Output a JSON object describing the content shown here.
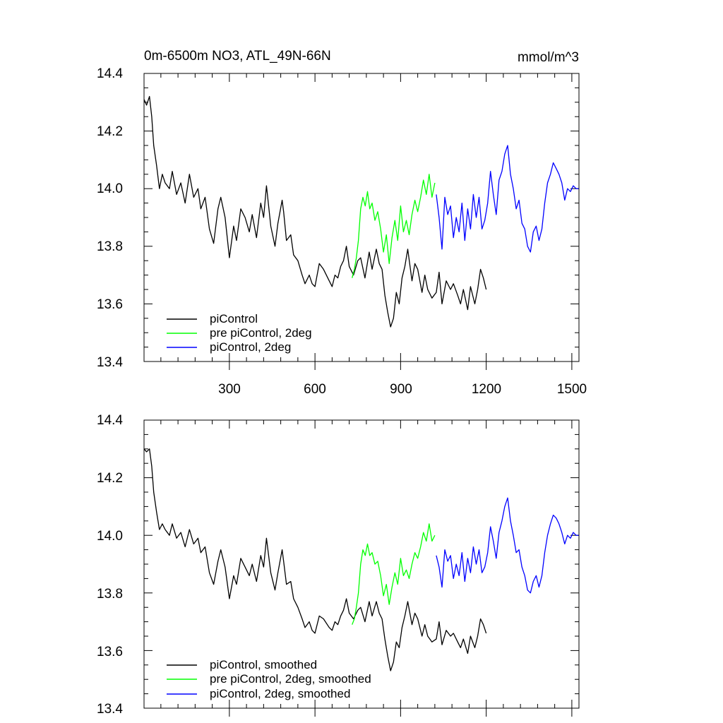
{
  "chart_data": [
    {
      "type": "line",
      "title": "0m-6500m NO3, ATL_49N-66N",
      "units": "mmol/m^3",
      "xlabel": "",
      "ylabel": "",
      "xlim": [
        1,
        1525
      ],
      "ylim": [
        13.4,
        14.4
      ],
      "xticks": [
        "300",
        "600",
        "900",
        "1200",
        "1500"
      ],
      "yticks": [
        "13.4",
        "13.6",
        "13.8",
        "14.0",
        "14.2",
        "14.4"
      ],
      "grid": false,
      "legend_position": "bottom-left",
      "series": [
        {
          "name": "piControl",
          "color": "#000000",
          "x": [
            1,
            10,
            20,
            28,
            35,
            45,
            55,
            65,
            75,
            90,
            100,
            115,
            130,
            145,
            160,
            175,
            190,
            200,
            215,
            230,
            245,
            260,
            270,
            285,
            300,
            315,
            325,
            340,
            355,
            370,
            380,
            395,
            410,
            420,
            430,
            445,
            460,
            470,
            485,
            490,
            500,
            515,
            525,
            540,
            555,
            565,
            580,
            590,
            600,
            615,
            630,
            650,
            660,
            670,
            680,
            690,
            700,
            710,
            720,
            735,
            750,
            760,
            775,
            790,
            800,
            815,
            825,
            835,
            845,
            855,
            865,
            875,
            885,
            895,
            905,
            915,
            925,
            940,
            950,
            960,
            975,
            985,
            995,
            1010,
            1025,
            1035,
            1045,
            1060,
            1075,
            1085,
            1100,
            1110,
            1120,
            1135,
            1145,
            1160,
            1170,
            1180,
            1190,
            1200
          ],
          "y": [
            14.31,
            14.29,
            14.32,
            14.25,
            14.15,
            14.08,
            14.0,
            14.05,
            14.02,
            14.0,
            14.06,
            13.98,
            14.02,
            13.95,
            14.05,
            13.97,
            14.0,
            13.93,
            13.97,
            13.86,
            13.81,
            13.93,
            13.97,
            13.9,
            13.76,
            13.87,
            13.82,
            13.93,
            13.9,
            13.85,
            13.91,
            13.83,
            13.95,
            13.9,
            14.01,
            13.87,
            13.8,
            13.88,
            13.96,
            13.92,
            13.82,
            13.84,
            13.77,
            13.75,
            13.7,
            13.67,
            13.7,
            13.67,
            13.66,
            13.74,
            13.72,
            13.68,
            13.66,
            13.7,
            13.69,
            13.73,
            13.75,
            13.8,
            13.73,
            13.7,
            13.75,
            13.76,
            13.69,
            13.78,
            13.72,
            13.79,
            13.74,
            13.72,
            13.63,
            13.57,
            13.52,
            13.55,
            13.64,
            13.6,
            13.69,
            13.73,
            13.79,
            13.68,
            13.74,
            13.72,
            13.64,
            13.7,
            13.65,
            13.62,
            13.64,
            13.71,
            13.6,
            13.68,
            13.65,
            13.67,
            13.63,
            13.6,
            13.65,
            13.58,
            13.66,
            13.6,
            13.65,
            13.72,
            13.69,
            13.65
          ]
        },
        {
          "name": "pre piControl, 2deg",
          "color": "#00ff00",
          "x": [
            730,
            738,
            745,
            752,
            760,
            768,
            776,
            784,
            792,
            800,
            810,
            820,
            830,
            840,
            850,
            860,
            870,
            880,
            890,
            900,
            910,
            920,
            930,
            940,
            950,
            960,
            970,
            980,
            990,
            1000,
            1010,
            1020
          ],
          "y": [
            13.69,
            13.72,
            13.76,
            13.82,
            13.93,
            13.97,
            13.94,
            13.99,
            13.93,
            13.95,
            13.89,
            13.92,
            13.86,
            13.78,
            13.84,
            13.74,
            13.83,
            13.89,
            13.82,
            13.94,
            13.85,
            13.89,
            13.84,
            13.91,
            13.96,
            13.92,
            13.97,
            14.03,
            13.98,
            14.05,
            13.97,
            14.02
          ]
        },
        {
          "name": "piControl, 2deg",
          "color": "#0000ff",
          "x": [
            1025,
            1035,
            1045,
            1055,
            1065,
            1075,
            1085,
            1095,
            1105,
            1115,
            1125,
            1135,
            1145,
            1155,
            1165,
            1175,
            1185,
            1195,
            1205,
            1215,
            1225,
            1235,
            1245,
            1255,
            1265,
            1275,
            1285,
            1295,
            1305,
            1315,
            1325,
            1335,
            1345,
            1355,
            1365,
            1375,
            1385,
            1395,
            1405,
            1415,
            1425,
            1435,
            1445,
            1455,
            1465,
            1475,
            1485,
            1495,
            1505,
            1515,
            1525
          ],
          "y": [
            13.98,
            13.9,
            13.79,
            13.97,
            13.91,
            13.94,
            13.83,
            13.9,
            13.85,
            13.95,
            13.82,
            13.93,
            13.86,
            13.98,
            13.9,
            13.97,
            13.86,
            13.89,
            13.95,
            14.06,
            13.98,
            13.91,
            14.03,
            14.06,
            14.12,
            14.15,
            14.05,
            14.0,
            13.93,
            13.96,
            13.88,
            13.86,
            13.8,
            13.78,
            13.85,
            13.87,
            13.82,
            13.86,
            13.95,
            14.02,
            14.05,
            14.09,
            14.07,
            14.05,
            14.02,
            13.96,
            14.0,
            13.99,
            14.01,
            14.0,
            14.0
          ]
        }
      ]
    },
    {
      "type": "line",
      "title": "",
      "xlabel": "",
      "ylabel": "",
      "xlim": [
        1,
        1525
      ],
      "ylim": [
        13.4,
        14.4
      ],
      "xticks": [],
      "yticks": [
        "13.4",
        "13.6",
        "13.8",
        "14.0",
        "14.2",
        "14.4"
      ],
      "grid": false,
      "legend_position": "bottom-left",
      "series": [
        {
          "name": "piControl, smoothed",
          "color": "#000000",
          "x": [
            1,
            10,
            20,
            28,
            35,
            45,
            55,
            65,
            75,
            90,
            100,
            115,
            130,
            145,
            160,
            175,
            190,
            200,
            215,
            230,
            245,
            260,
            270,
            285,
            300,
            315,
            325,
            340,
            355,
            370,
            380,
            395,
            410,
            420,
            430,
            445,
            460,
            470,
            485,
            490,
            500,
            515,
            525,
            540,
            555,
            565,
            580,
            590,
            600,
            615,
            630,
            650,
            660,
            670,
            680,
            690,
            700,
            710,
            720,
            735,
            750,
            760,
            775,
            790,
            800,
            815,
            825,
            835,
            845,
            855,
            865,
            875,
            885,
            895,
            905,
            915,
            925,
            940,
            950,
            960,
            975,
            985,
            995,
            1010,
            1025,
            1035,
            1045,
            1060,
            1075,
            1085,
            1100,
            1110,
            1120,
            1135,
            1145,
            1160,
            1170,
            1180,
            1190,
            1200
          ],
          "y": [
            14.3,
            14.29,
            14.3,
            14.24,
            14.15,
            14.08,
            14.02,
            14.04,
            14.02,
            14.0,
            14.04,
            13.99,
            14.01,
            13.96,
            14.02,
            13.97,
            13.99,
            13.94,
            13.96,
            13.87,
            13.83,
            13.91,
            13.95,
            13.89,
            13.78,
            13.86,
            13.83,
            13.92,
            13.89,
            13.86,
            13.9,
            13.84,
            13.93,
            13.89,
            13.99,
            13.87,
            13.81,
            13.87,
            13.95,
            13.91,
            13.83,
            13.84,
            13.78,
            13.75,
            13.71,
            13.68,
            13.7,
            13.67,
            13.66,
            13.72,
            13.71,
            13.68,
            13.67,
            13.7,
            13.69,
            13.72,
            13.74,
            13.78,
            13.73,
            13.71,
            13.74,
            13.75,
            13.7,
            13.77,
            13.72,
            13.77,
            13.73,
            13.71,
            13.64,
            13.58,
            13.53,
            13.56,
            13.63,
            13.61,
            13.68,
            13.72,
            13.77,
            13.69,
            13.73,
            13.71,
            13.65,
            13.69,
            13.65,
            13.63,
            13.64,
            13.7,
            13.62,
            13.67,
            13.65,
            13.66,
            13.63,
            13.61,
            13.64,
            13.59,
            13.65,
            13.61,
            13.65,
            13.71,
            13.69,
            13.66
          ]
        },
        {
          "name": "pre piControl, 2deg, smoothed",
          "color": "#00ff00",
          "x": [
            730,
            738,
            745,
            752,
            760,
            768,
            776,
            784,
            792,
            800,
            810,
            820,
            830,
            840,
            850,
            860,
            870,
            880,
            890,
            900,
            910,
            920,
            930,
            940,
            950,
            960,
            970,
            980,
            990,
            1000,
            1010,
            1020
          ],
          "y": [
            13.69,
            13.71,
            13.75,
            13.8,
            13.9,
            13.95,
            13.93,
            13.97,
            13.93,
            13.94,
            13.9,
            13.91,
            13.86,
            13.79,
            13.83,
            13.76,
            13.82,
            13.87,
            13.83,
            13.92,
            13.86,
            13.88,
            13.85,
            13.9,
            13.94,
            13.92,
            13.96,
            14.01,
            13.98,
            14.04,
            13.98,
            14.0
          ]
        },
        {
          "name": "piControl, 2deg, smoothed",
          "color": "#0000ff",
          "x": [
            1025,
            1035,
            1045,
            1055,
            1065,
            1075,
            1085,
            1095,
            1105,
            1115,
            1125,
            1135,
            1145,
            1155,
            1165,
            1175,
            1185,
            1195,
            1205,
            1215,
            1225,
            1235,
            1245,
            1255,
            1265,
            1275,
            1285,
            1295,
            1305,
            1315,
            1325,
            1335,
            1345,
            1355,
            1365,
            1375,
            1385,
            1395,
            1405,
            1415,
            1425,
            1435,
            1445,
            1455,
            1465,
            1475,
            1485,
            1495,
            1505,
            1515,
            1525
          ],
          "y": [
            13.93,
            13.89,
            13.82,
            13.95,
            13.91,
            13.93,
            13.85,
            13.9,
            13.86,
            13.94,
            13.84,
            13.92,
            13.87,
            13.96,
            13.9,
            13.95,
            13.87,
            13.89,
            13.94,
            14.03,
            13.98,
            13.92,
            14.01,
            14.05,
            14.1,
            14.13,
            14.05,
            14.0,
            13.94,
            13.95,
            13.89,
            13.86,
            13.81,
            13.8,
            13.84,
            13.86,
            13.82,
            13.86,
            13.94,
            14.0,
            14.04,
            14.07,
            14.06,
            14.04,
            14.01,
            13.97,
            14.0,
            13.99,
            14.01,
            14.0,
            14.0
          ]
        }
      ]
    }
  ]
}
